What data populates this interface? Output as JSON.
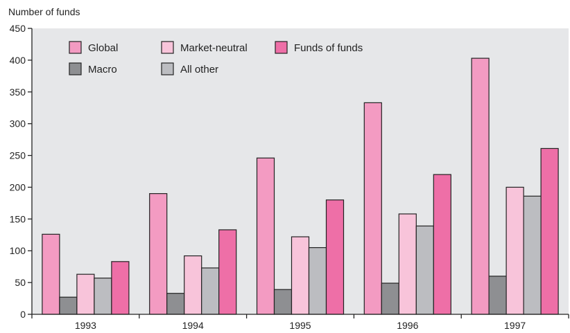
{
  "chart_data": {
    "type": "bar",
    "ylabel": "Number of funds",
    "xlabel": "",
    "ylim": [
      0,
      450
    ],
    "y_ticks": [
      0,
      50,
      100,
      150,
      200,
      250,
      300,
      350,
      400,
      450
    ],
    "categories": [
      "1993",
      "1994",
      "1995",
      "1996",
      "1997"
    ],
    "grid": false,
    "legend_position": "top-left",
    "series": [
      {
        "name": "Global",
        "color": "#f39bc2",
        "values": [
          126,
          190,
          246,
          333,
          403
        ]
      },
      {
        "name": "Macro",
        "color": "#8e8f92",
        "values": [
          27,
          33,
          39,
          49,
          60
        ]
      },
      {
        "name": "Market-neutral",
        "color": "#f8c4da",
        "values": [
          63,
          92,
          122,
          158,
          200
        ]
      },
      {
        "name": "All other",
        "color": "#bcbdc1",
        "values": [
          57,
          73,
          105,
          139,
          186
        ]
      },
      {
        "name": "Funds of funds",
        "color": "#ee6fa7",
        "values": [
          83,
          133,
          180,
          220,
          261
        ]
      }
    ],
    "plot_background": "#e6e7e9"
  }
}
